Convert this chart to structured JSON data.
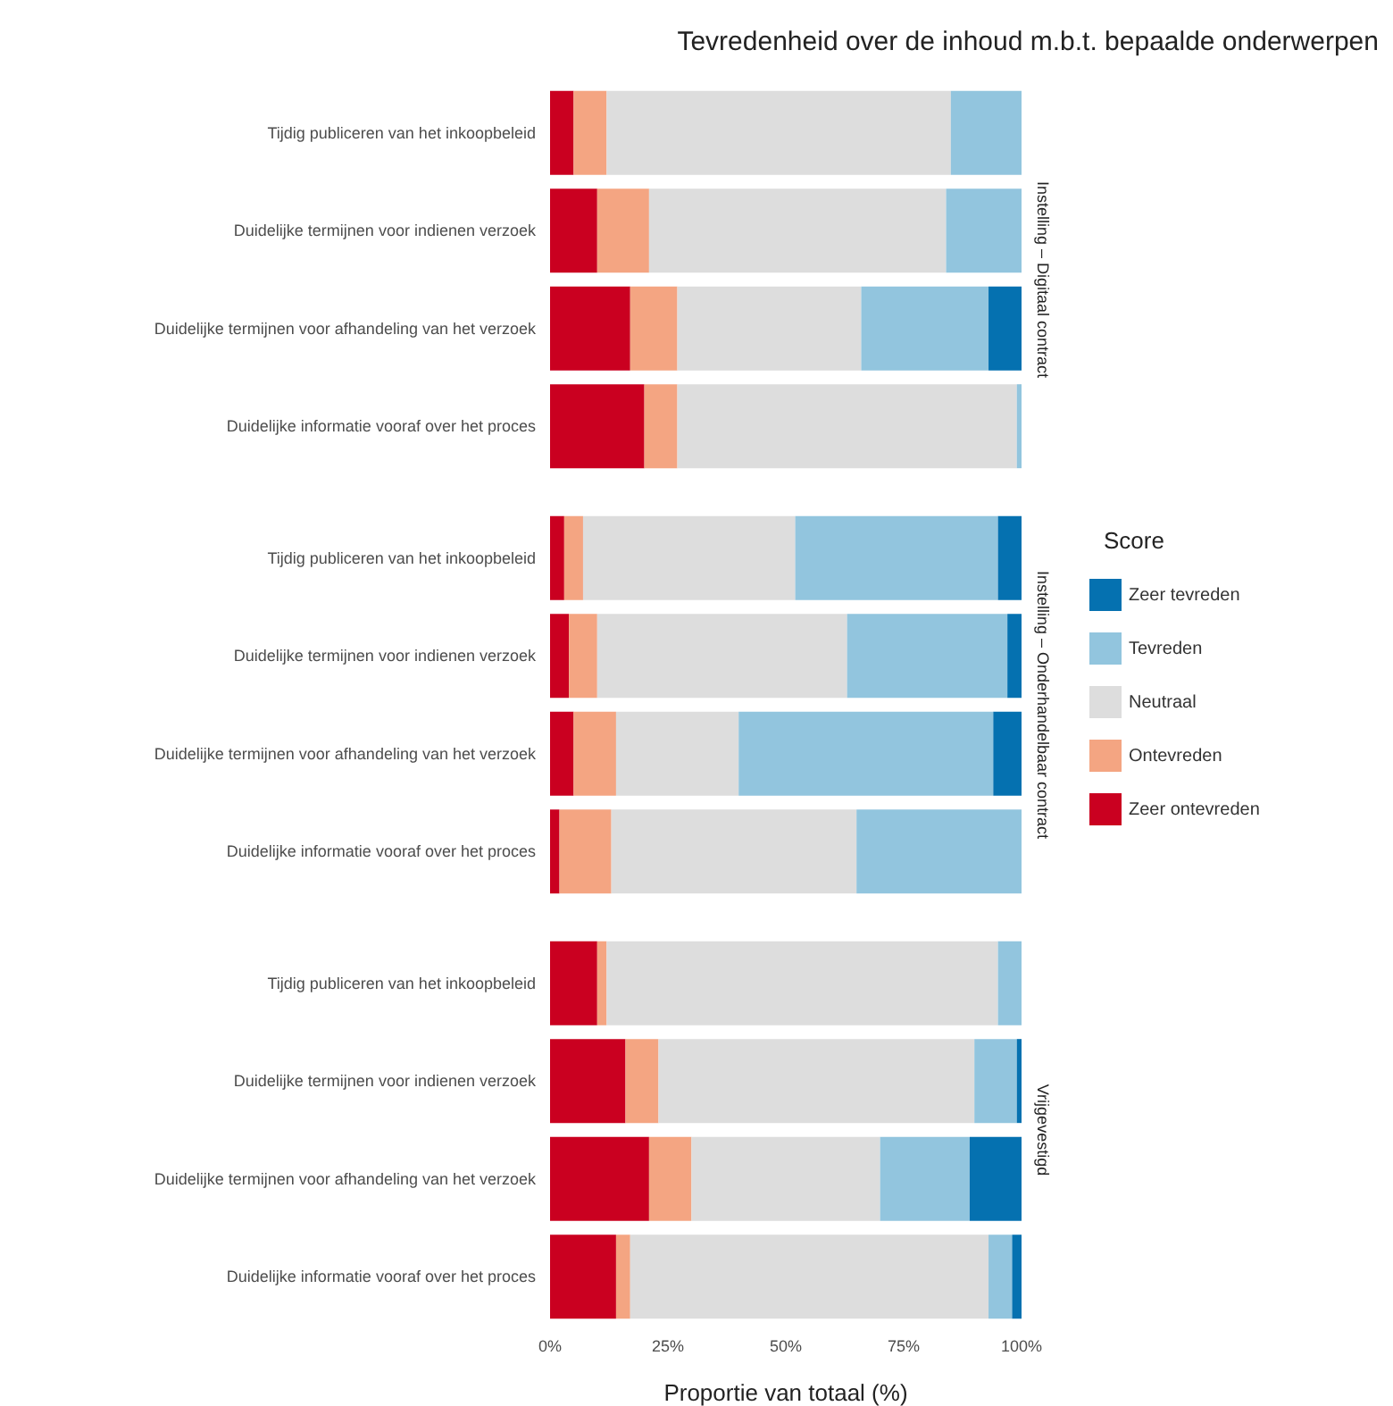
{
  "chart_data": [
    {
      "type": "bar",
      "title": "Tevredenheid over de inhoud m.b.t. bepaalde onderwerpen",
      "y2label": "Instelling – Digitaal contract",
      "orientation": "horizontal",
      "stacked": true,
      "tick_labels": "y",
      "xlim": [
        0,
        100
      ],
      "categories": [
        "Tijdig publiceren van het inkoopbeleid",
        "Duidelijke termijnen voor indienen verzoek",
        "Duidelijke termijnen voor afhandeling van het verzoek",
        "Duidelijke informatie vooraf over het proces"
      ],
      "series": [
        {
          "color": "#ca0020",
          "values": [
            5,
            10,
            17,
            20
          ]
        },
        {
          "color": "#f4a582",
          "values": [
            7,
            11,
            10,
            7
          ]
        },
        {
          "color": "#dddddd",
          "values": [
            73,
            63,
            39,
            72
          ]
        },
        {
          "color": "#92c5de",
          "values": [
            15,
            16,
            27,
            1
          ]
        },
        {
          "color": "#0571b0",
          "values": [
            0,
            0,
            7,
            0
          ]
        }
      ]
    },
    {
      "type": "bar",
      "y2label": "Instelling – Onderhandelbaar contract",
      "orientation": "horizontal",
      "stacked": true,
      "tick_labels": "y",
      "xlim": [
        0,
        100
      ],
      "legend": "right",
      "legend_title": "Score",
      "categories": [
        "Tijdig publiceren van het inkoopbeleid",
        "Duidelijke termijnen voor indienen verzoek",
        "Duidelijke termijnen voor afhandeling van het verzoek",
        "Duidelijke informatie vooraf over het proces"
      ],
      "series": [
        {
          "name": "Zeer ontevreden",
          "color": "#ca0020",
          "values": [
            3,
            4,
            5,
            2
          ]
        },
        {
          "name": "Ontevreden",
          "color": "#f4a582",
          "values": [
            4,
            6,
            9,
            11
          ]
        },
        {
          "name": "Neutraal",
          "color": "#dddddd",
          "values": [
            45,
            53,
            26,
            52
          ]
        },
        {
          "name": "Tevreden",
          "color": "#92c5de",
          "values": [
            43,
            34,
            54,
            35
          ]
        },
        {
          "name": "Zeer tevreden",
          "color": "#0571b0",
          "values": [
            5,
            3,
            6,
            0
          ]
        }
      ]
    },
    {
      "type": "bar",
      "y2label": "Vrijgevestigd",
      "orientation": "horizontal",
      "stacked": true,
      "xlim": [
        0,
        100
      ],
      "xlabel": "Proportie van totaal (%)",
      "xticks": [
        {
          "value": 0,
          "label": "0%"
        },
        {
          "value": 25,
          "label": "25%"
        },
        {
          "value": 50,
          "label": "50%"
        },
        {
          "value": 75,
          "label": "75%"
        },
        {
          "value": 100,
          "label": "100%"
        }
      ],
      "categories": [
        "Tijdig publiceren van het inkoopbeleid",
        "Duidelijke termijnen voor indienen verzoek",
        "Duidelijke termijnen voor afhandeling van het verzoek",
        "Duidelijke informatie vooraf over het proces"
      ],
      "series": [
        {
          "color": "#ca0020",
          "values": [
            10,
            16,
            21,
            14
          ]
        },
        {
          "color": "#f4a582",
          "values": [
            2,
            7,
            9,
            3
          ]
        },
        {
          "color": "#dddddd",
          "values": [
            83,
            67,
            40,
            76
          ]
        },
        {
          "color": "#92c5de",
          "values": [
            5,
            9,
            19,
            5
          ]
        },
        {
          "color": "#0571b0",
          "values": [
            0,
            1,
            11,
            2
          ]
        }
      ]
    }
  ]
}
